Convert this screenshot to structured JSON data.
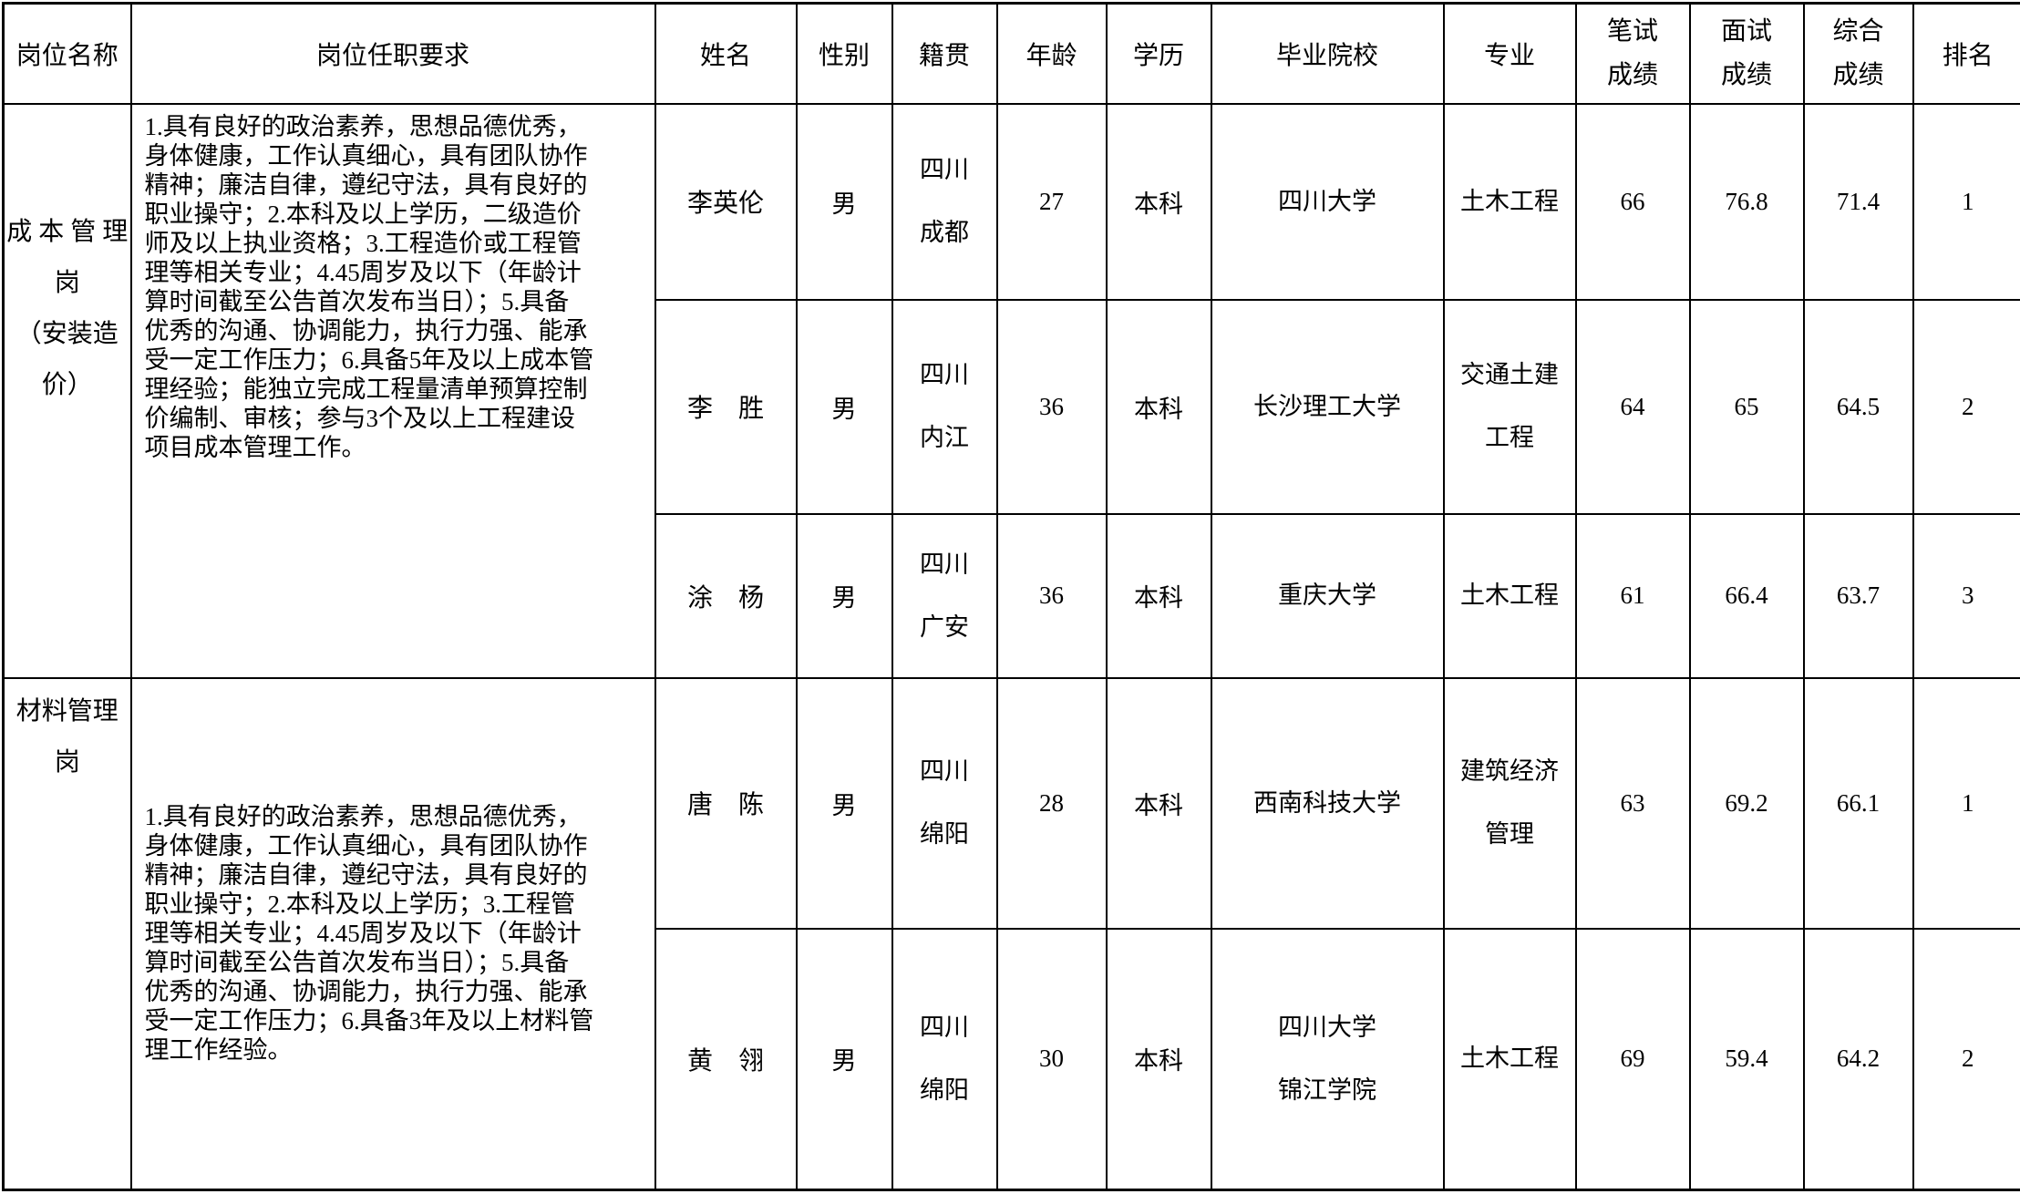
{
  "table": {
    "headers": {
      "position": "岗位名称",
      "requirements": "岗位任职要求",
      "name": "姓名",
      "gender": "性别",
      "origin": "籍贯",
      "age": "年龄",
      "education": "学历",
      "school": "毕业院校",
      "major": "专业",
      "written": "笔试\n成绩",
      "interview": "面试\n成绩",
      "overall": "综合\n成绩",
      "rank": "排名"
    },
    "groups": [
      {
        "position": "成 本 管 理 岗\n（安装造价）",
        "requirements": "1.具有良好的政治素养，思想品德优秀，\n身体健康，工作认真细心，具有团队协作\n精神；廉洁自律，遵纪守法，具有良好的\n职业操守；2.本科及以上学历，二级造价\n师及以上执业资格；3.工程造价或工程管\n理等相关专业；4.45周岁及以下（年龄计\n算时间截至公告首次发布当日）；5.具备\n优秀的沟通、协调能力，执行力强、能承\n受一定工作压力；6.具备5年及以上成本管\n理经验；能独立完成工程量清单预算控制\n价编制、审核；参与3个及以上工程建设\n项目成本管理工作。",
        "candidates": [
          {
            "name": "李英伦",
            "gender": "男",
            "origin": "四川\n成都",
            "age": "27",
            "education": "本科",
            "school": "四川大学",
            "major": "土木工程",
            "written": "66",
            "interview": "76.8",
            "overall": "71.4",
            "rank": "1"
          },
          {
            "name": "李　胜",
            "gender": "男",
            "origin": "四川\n内江",
            "age": "36",
            "education": "本科",
            "school": "长沙理工大学",
            "major": "交通土建\n工程",
            "written": "64",
            "interview": "65",
            "overall": "64.5",
            "rank": "2"
          },
          {
            "name": "涂　杨",
            "gender": "男",
            "origin": "四川\n广安",
            "age": "36",
            "education": "本科",
            "school": "重庆大学",
            "major": "土木工程",
            "written": "61",
            "interview": "66.4",
            "overall": "63.7",
            "rank": "3"
          }
        ]
      },
      {
        "position": "材料管理岗",
        "requirements": "1.具有良好的政治素养，思想品德优秀，\n身体健康，工作认真细心，具有团队协作\n精神；廉洁自律，遵纪守法，具有良好的\n职业操守；2.本科及以上学历；3.工程管\n理等相关专业；4.45周岁及以下（年龄计\n算时间截至公告首次发布当日）；5.具备\n优秀的沟通、协调能力，执行力强、能承\n受一定工作压力；6.具备3年及以上材料管\n理工作经验。",
        "candidates": [
          {
            "name": "唐　陈",
            "gender": "男",
            "origin": "四川\n绵阳",
            "age": "28",
            "education": "本科",
            "school": "西南科技大学",
            "major": "建筑经济\n管理",
            "written": "63",
            "interview": "69.2",
            "overall": "66.1",
            "rank": "1"
          },
          {
            "name": "黄　翎",
            "gender": "男",
            "origin": "四川\n绵阳",
            "age": "30",
            "education": "本科",
            "school": "四川大学\n锦江学院",
            "major": "土木工程",
            "written": "69",
            "interview": "59.4",
            "overall": "64.2",
            "rank": "2"
          }
        ]
      }
    ]
  }
}
